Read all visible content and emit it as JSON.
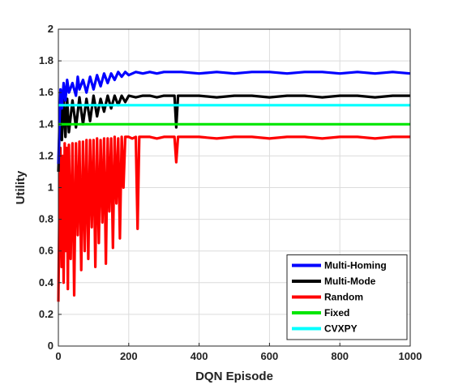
{
  "chart_data": {
    "type": "line",
    "title": "",
    "xlabel": "DQN Episode",
    "ylabel": "Utility",
    "xlim": [
      0,
      1000
    ],
    "ylim": [
      0,
      2
    ],
    "xticks": [
      0,
      200,
      400,
      600,
      800,
      1000
    ],
    "yticks": [
      0,
      0.2,
      0.4,
      0.6,
      0.8,
      1,
      1.2,
      1.4,
      1.6,
      1.8,
      2
    ],
    "grid": true,
    "legend_position": "bottom-right",
    "series": [
      {
        "name": "Multi-Homing",
        "color": "#0000ff",
        "x": [
          0,
          3,
          6,
          10,
          15,
          20,
          25,
          30,
          40,
          50,
          55,
          60,
          70,
          80,
          90,
          100,
          110,
          120,
          130,
          140,
          150,
          160,
          170,
          180,
          190,
          200,
          220,
          240,
          260,
          280,
          300,
          350,
          400,
          450,
          500,
          550,
          600,
          650,
          700,
          750,
          800,
          850,
          900,
          950,
          1000
        ],
        "y": [
          1.15,
          1.4,
          1.62,
          1.5,
          1.66,
          1.55,
          1.68,
          1.6,
          1.66,
          1.58,
          1.7,
          1.62,
          1.68,
          1.6,
          1.7,
          1.62,
          1.71,
          1.64,
          1.72,
          1.66,
          1.72,
          1.68,
          1.73,
          1.7,
          1.73,
          1.71,
          1.73,
          1.72,
          1.73,
          1.72,
          1.73,
          1.73,
          1.72,
          1.73,
          1.72,
          1.73,
          1.73,
          1.72,
          1.73,
          1.73,
          1.72,
          1.73,
          1.72,
          1.73,
          1.72
        ]
      },
      {
        "name": "Multi-Mode",
        "color": "#000000",
        "x": [
          0,
          3,
          6,
          10,
          15,
          20,
          25,
          30,
          40,
          50,
          60,
          70,
          80,
          90,
          100,
          110,
          120,
          130,
          140,
          150,
          160,
          170,
          180,
          190,
          200,
          220,
          240,
          260,
          280,
          300,
          330,
          335,
          340,
          400,
          450,
          500,
          550,
          600,
          650,
          700,
          750,
          800,
          850,
          900,
          950,
          1000
        ],
        "y": [
          1.1,
          1.35,
          1.55,
          1.3,
          1.57,
          1.32,
          1.56,
          1.35,
          1.55,
          1.38,
          1.57,
          1.4,
          1.56,
          1.42,
          1.58,
          1.45,
          1.56,
          1.48,
          1.58,
          1.5,
          1.58,
          1.52,
          1.58,
          1.54,
          1.58,
          1.57,
          1.58,
          1.58,
          1.57,
          1.58,
          1.58,
          1.38,
          1.58,
          1.58,
          1.57,
          1.58,
          1.58,
          1.57,
          1.58,
          1.58,
          1.57,
          1.58,
          1.58,
          1.57,
          1.58,
          1.58
        ]
      },
      {
        "name": "Random",
        "color": "#ff0000",
        "x": [
          0,
          3,
          6,
          9,
          12,
          15,
          18,
          21,
          24,
          27,
          30,
          35,
          40,
          45,
          50,
          55,
          60,
          65,
          70,
          75,
          80,
          85,
          90,
          95,
          100,
          105,
          110,
          115,
          120,
          125,
          130,
          135,
          140,
          145,
          150,
          155,
          160,
          165,
          170,
          175,
          180,
          185,
          190,
          200,
          210,
          220,
          225,
          230,
          240,
          260,
          280,
          300,
          330,
          335,
          340,
          400,
          450,
          500,
          550,
          600,
          650,
          700,
          750,
          800,
          850,
          900,
          950,
          1000
        ],
        "y": [
          0.28,
          0.9,
          1.25,
          0.5,
          1.2,
          0.4,
          1.28,
          0.6,
          1.25,
          0.36,
          1.27,
          0.55,
          1.28,
          0.32,
          1.28,
          0.7,
          1.29,
          0.48,
          1.29,
          0.6,
          1.3,
          0.55,
          1.3,
          0.75,
          1.3,
          0.5,
          1.31,
          0.65,
          1.3,
          0.78,
          1.31,
          0.52,
          1.31,
          0.85,
          1.31,
          0.62,
          1.32,
          0.9,
          1.31,
          0.68,
          1.32,
          1.0,
          1.32,
          1.32,
          1.31,
          1.32,
          0.74,
          1.32,
          1.32,
          1.32,
          1.31,
          1.32,
          1.32,
          1.16,
          1.32,
          1.32,
          1.31,
          1.32,
          1.32,
          1.31,
          1.32,
          1.32,
          1.31,
          1.32,
          1.32,
          1.31,
          1.32,
          1.32
        ]
      },
      {
        "name": "Fixed",
        "color": "#00e600",
        "x": [
          0,
          1000
        ],
        "y": [
          1.4,
          1.4
        ]
      },
      {
        "name": "CVXPY",
        "color": "#00ffff",
        "x": [
          0,
          1000
        ],
        "y": [
          1.52,
          1.52
        ]
      }
    ]
  }
}
